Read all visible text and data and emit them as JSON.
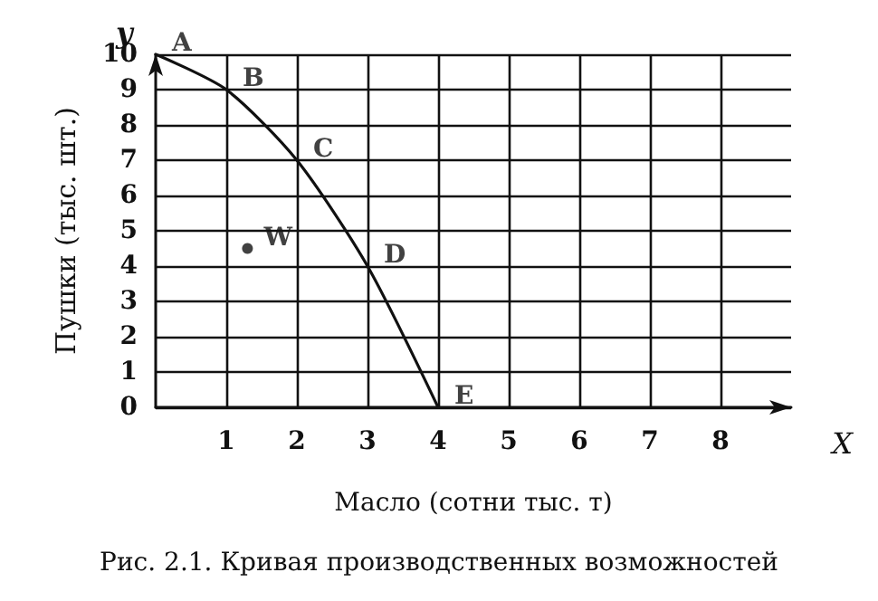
{
  "chart_data": {
    "type": "line",
    "xlabel": "Масло (сотни тыс. т)",
    "ylabel": "Пушки (тыс. шт.)",
    "xlim": [
      0,
      9
    ],
    "xticks": [
      1,
      2,
      3,
      4,
      5,
      6,
      7,
      8
    ],
    "ylim": [
      0,
      10
    ],
    "yticks": [
      0,
      1,
      2,
      3,
      4,
      5,
      6,
      7,
      8,
      9,
      10
    ],
    "grid": true,
    "marker": "none",
    "line_style": "solid",
    "series": [
      {
        "color": "#111111",
        "x": [
          0,
          1,
          2,
          3,
          4
        ],
        "values": [
          10,
          9,
          7,
          4,
          0
        ]
      },
      {
        "type": "scatter",
        "color": "#111111",
        "x": [
          1.3
        ],
        "values": [
          4.5
        ],
        "marker": "circle"
      }
    ],
    "annotations": [
      {
        "text": "A",
        "x": 0,
        "y": 10
      },
      {
        "text": "B",
        "x": 1,
        "y": 9
      },
      {
        "text": "C",
        "x": 2,
        "y": 7
      },
      {
        "text": "D",
        "x": 3,
        "y": 4
      },
      {
        "text": "E",
        "x": 4,
        "y": 0
      },
      {
        "text": "W",
        "x": 1.3,
        "y": 4.5
      },
      "y",
      "X",
      "Рис. 2.1. Кривая производственных возможностей"
    ]
  }
}
